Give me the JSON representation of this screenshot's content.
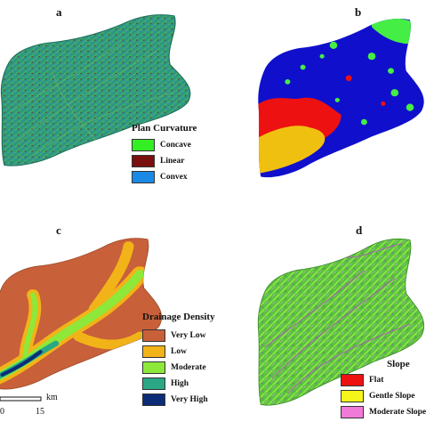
{
  "panels": {
    "a": {
      "label": "a",
      "legend_title": "Plan Curvature",
      "legend": [
        {
          "label": "Concave",
          "color": "#33ee22"
        },
        {
          "label": "Linear",
          "color": "#7a0f0f"
        },
        {
          "label": "Convex",
          "color": "#1a8ae6"
        }
      ]
    },
    "b": {
      "label": "b",
      "colors": {
        "background": "#1010cc",
        "red": "#ee1111",
        "yellow": "#f0c010",
        "green": "#44ee44"
      }
    },
    "c": {
      "label": "c",
      "legend_title": "Drainage Density",
      "legend": [
        {
          "label": "Very Low",
          "color": "#c8603a"
        },
        {
          "label": "Low",
          "color": "#f2b318"
        },
        {
          "label": "Moderate",
          "color": "#8ee83a"
        },
        {
          "label": "High",
          "color": "#2aa886"
        },
        {
          "label": "Very High",
          "color": "#0c2c78"
        }
      ],
      "scale": {
        "unit": "km",
        "tick_start": "0",
        "tick_end": "15"
      }
    },
    "d": {
      "label": "d",
      "legend_title": "Slope",
      "legend": [
        {
          "label": "Flat",
          "color": "#ee1111"
        },
        {
          "label": "Gentle Slope",
          "color": "#f5f51a"
        },
        {
          "label": "Moderate Slope",
          "color": "#f07ad8"
        }
      ]
    }
  }
}
